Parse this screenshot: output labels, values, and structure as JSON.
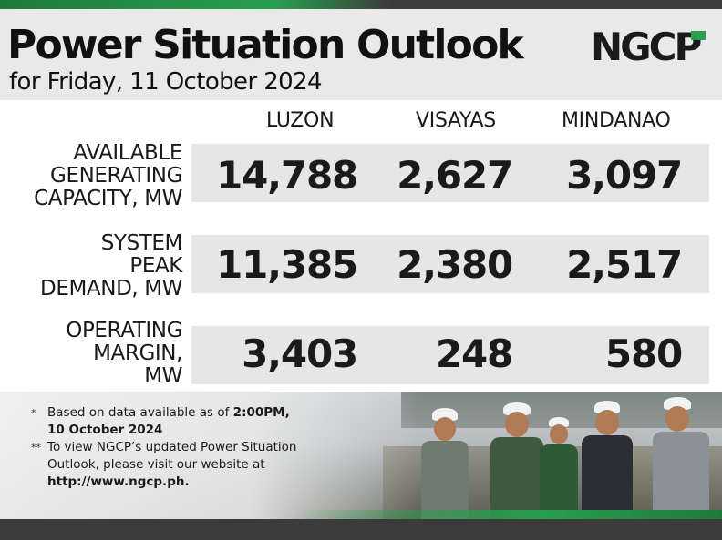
{
  "header": {
    "title": "Power Situation Outlook",
    "subtitle": "for Friday, 11 October 2024",
    "logo_text": "NGCP"
  },
  "columns": [
    "LUZON",
    "VISAYAS",
    "MINDANAO"
  ],
  "rows": [
    {
      "label_lines": [
        "AVAILABLE",
        "GENERATING",
        "CAPACITY, MW"
      ],
      "values": [
        "14,788",
        "2,627",
        "3,097"
      ]
    },
    {
      "label_lines": [
        "SYSTEM",
        "PEAK",
        "DEMAND, MW"
      ],
      "values": [
        "11,385",
        "2,380",
        "2,517"
      ]
    },
    {
      "label_lines": [
        "OPERATING",
        "MARGIN,",
        "MW"
      ],
      "values": [
        "3,403",
        "248",
        "580"
      ]
    }
  ],
  "notes": [
    {
      "mark": "*",
      "text_before": "Based on data available as of ",
      "bold": "2:00PM,",
      "line2_bold": "10 October 2024"
    },
    {
      "mark": "**",
      "text": "To view NGCP’s updated Power Situation",
      "line2": "Outlook, please visit our website at",
      "line3_bold": "http://www.ngcp.ph."
    }
  ],
  "colors": {
    "accent_green": "#27a04f",
    "dark_bar": "#3b3b3b",
    "header_bg": "#e9e9e9",
    "band_bg": "#e6e6e6"
  }
}
